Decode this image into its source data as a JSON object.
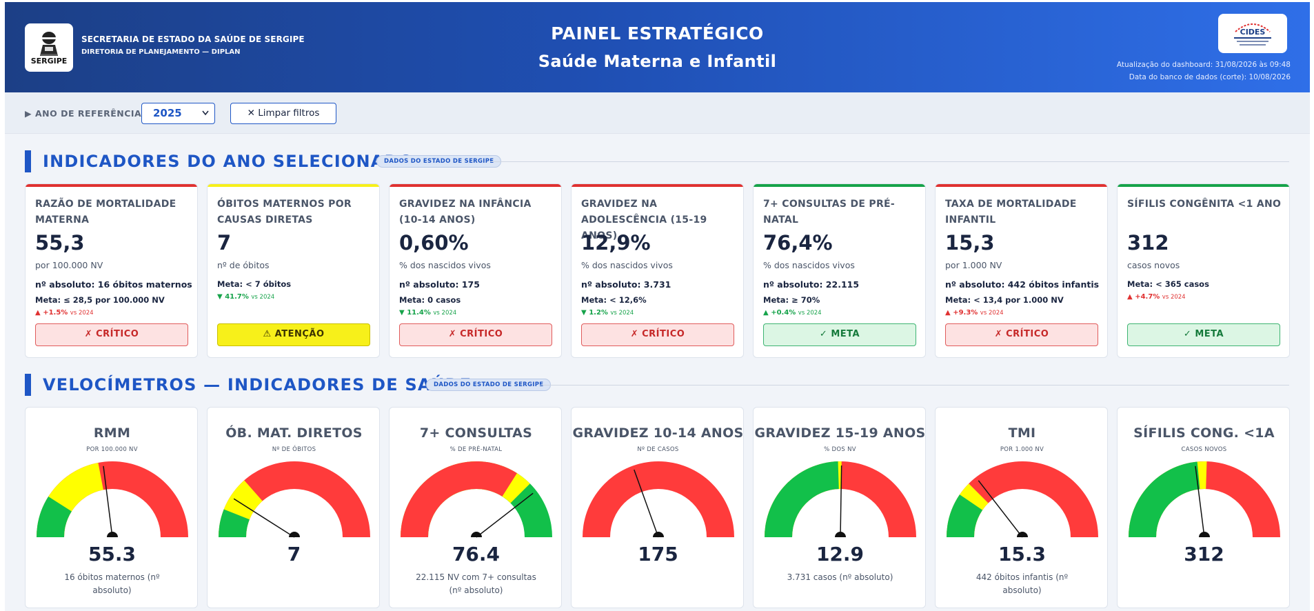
{
  "header": {
    "org_name": "SECRETARIA DE ESTADO DA SAÚDE DE SERGIPE",
    "org_sub": "DIRETORIA DE PLANEJAMENTO — DIPLAN",
    "logo_left_text": "SERGIPE",
    "title": "PAINEL ESTRATÉGICO",
    "subtitle": "Saúde Materna e Infantil",
    "logo_right_text": "CIDES",
    "update_dashboard": "Atualização do dashboard: 31/08/2026 às 09:48",
    "update_db": "Data do banco de dados (corte): 10/08/2026"
  },
  "filters": {
    "year_label": "▶ ANO DE REFERÊNCIA",
    "year_value": "2025",
    "clear_label": "✕ Limpar filtros"
  },
  "section1": {
    "title": "INDICADORES DO ANO SELECIONADO",
    "pill": "DADOS DO ESTADO DE SERGIPE"
  },
  "section2": {
    "title": "VELOCÍMETROS — INDICADORES DE SAÚDE",
    "pill": "DADOS DO ESTADO DE SERGIPE"
  },
  "colors": {
    "red": "#e03131",
    "yellow": "#f7f01a",
    "green": "#16a34a",
    "accent": "#1e56c5",
    "gauge_red": "#ff3b3b",
    "gauge_yellow": "#ffff00",
    "gauge_green": "#12c04a"
  },
  "kpis": [
    {
      "title": "RAZÃO DE MORTALIDADE MATERNA",
      "value": "55,3",
      "unit": "por 100.000 NV",
      "abs": "nº absoluto: 16 óbitos maternos",
      "meta": "Meta: ≤ 28,5 por 100.000 NV",
      "var_arrow": "▲",
      "var": "+1.5%",
      "var_dir": "up",
      "var_ref": "vs 2024",
      "status": "crit",
      "status_label": "✗ CRÍTICO",
      "top": "red"
    },
    {
      "title": "ÓBITOS MATERNOS POR CAUSAS DIRETAS",
      "value": "7",
      "unit": "nº de óbitos",
      "abs": "",
      "meta": "Meta: < 7 óbitos",
      "var_arrow": "▼",
      "var": "41.7%",
      "var_dir": "down",
      "var_ref": "vs 2024",
      "status": "att",
      "status_label": "⚠ ATENÇÃO",
      "top": "yellow"
    },
    {
      "title": "GRAVIDEZ NA INFÂNCIA (10-14 ANOS)",
      "value": "0,60%",
      "unit": "% dos nascidos vivos",
      "abs": "nº absoluto: 175",
      "meta": "Meta: 0 casos",
      "var_arrow": "▼",
      "var": "11.4%",
      "var_dir": "down",
      "var_ref": "vs 2024",
      "status": "crit",
      "status_label": "✗ CRÍTICO",
      "top": "red"
    },
    {
      "title": "GRAVIDEZ NA ADOLESCÊNCIA (15-19 ANOS)",
      "value": "12,9%",
      "unit": "% dos nascidos vivos",
      "abs": "nº absoluto: 3.731",
      "meta": "Meta: < 12,6%",
      "var_arrow": "▼",
      "var": "1.2%",
      "var_dir": "down",
      "var_ref": "vs 2024",
      "status": "crit",
      "status_label": "✗ CRÍTICO",
      "top": "red"
    },
    {
      "title": "7+ CONSULTAS DE PRÉ-NATAL",
      "value": "76,4%",
      "unit": "% dos nascidos vivos",
      "abs": "nº absoluto: 22.115",
      "meta": "Meta: ≥ 70%",
      "var_arrow": "▲",
      "var": "+0.4%",
      "var_dir": "down",
      "var_ref": "vs 2024",
      "status": "meta",
      "status_label": "✓ META",
      "top": "green"
    },
    {
      "title": "TAXA DE MORTALIDADE INFANTIL",
      "value": "15,3",
      "unit": "por 1.000 NV",
      "abs": "nº absoluto: 442 óbitos infantis",
      "meta": "Meta: < 13,4 por 1.000 NV",
      "var_arrow": "▲",
      "var": "+9.3%",
      "var_dir": "up",
      "var_ref": "vs 2024",
      "status": "crit",
      "status_label": "✗ CRÍTICO",
      "top": "red"
    },
    {
      "title": "SÍFILIS CONGÊNITA <1 ANO",
      "value": "312",
      "unit": "casos novos",
      "abs": "",
      "meta": "Meta: < 365 casos",
      "var_arrow": "▲",
      "var": "+4.7%",
      "var_dir": "up",
      "var_ref": "vs 2024",
      "status": "meta",
      "status_label": "✓ META",
      "top": "green"
    }
  ],
  "gauges": [
    {
      "title": "RMM",
      "unit": "POR 100.000 NV",
      "value": "55.3",
      "note": "16 óbitos maternos (nº absoluto)",
      "needle": 0.46,
      "bands": [
        [
          "green",
          0,
          0.18
        ],
        [
          "yellow",
          0,
          0.44
        ],
        [
          "red",
          0,
          1
        ]
      ]
    },
    {
      "title": "ÓB. MAT. DIRETOS",
      "unit": "Nº DE ÓBITOS",
      "value": "7",
      "note": "",
      "needle": 0.18,
      "bands": [
        [
          "green",
          0,
          0.12
        ],
        [
          "yellow",
          0,
          0.27
        ],
        [
          "red",
          0,
          1
        ]
      ]
    },
    {
      "title": "7+ CONSULTAS",
      "unit": "% DE PRÉ-NATAL",
      "value": "76.4",
      "note": "22.115 NV com 7+ consultas (nº absoluto)",
      "needle": 0.79,
      "bands": [
        [
          "red",
          0,
          0.68
        ],
        [
          "yellow",
          0,
          0.75
        ],
        [
          "green",
          0,
          1
        ]
      ]
    },
    {
      "title": "GRAVIDEZ 10-14 ANOS",
      "unit": "Nº DE CASOS",
      "value": "175",
      "note": "",
      "needle": 0.39,
      "bands": [
        [
          "red",
          0,
          1
        ]
      ]
    },
    {
      "title": "GRAVIDEZ 15-19 ANOS",
      "unit": "% DOS NV",
      "value": "12.9",
      "note": "3.731 casos (nº absoluto)",
      "needle": 0.505,
      "bands": [
        [
          "green",
          0,
          0.49
        ],
        [
          "yellow",
          0,
          0.505
        ],
        [
          "red",
          0,
          1
        ]
      ]
    },
    {
      "title": "TMI",
      "unit": "POR 1.000 NV",
      "value": "15.3",
      "note": "442 óbitos infantis (nº absoluto)",
      "needle": 0.29,
      "bands": [
        [
          "green",
          0,
          0.19
        ],
        [
          "yellow",
          0,
          0.25
        ],
        [
          "red",
          0,
          1
        ]
      ]
    },
    {
      "title": "SÍFILIS CONG. <1A",
      "unit": "CASOS NOVOS",
      "value": "312",
      "note": "",
      "needle": 0.46,
      "bands": [
        [
          "green",
          0,
          0.47
        ],
        [
          "yellow",
          0,
          0.51
        ],
        [
          "red",
          0,
          1
        ]
      ]
    }
  ]
}
